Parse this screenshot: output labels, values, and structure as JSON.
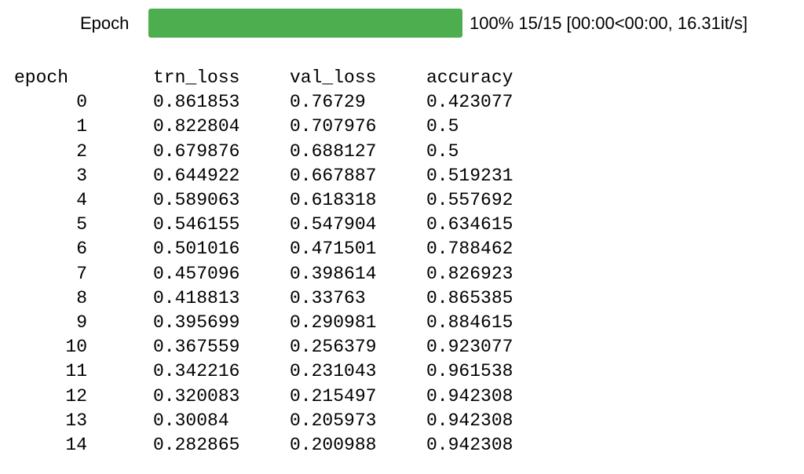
{
  "progress": {
    "label": "Epoch",
    "fraction": 1.0,
    "fill_color": "#4cae4f",
    "status": "100% 15/15 [00:00<00:00, 16.31it/s]"
  },
  "table": {
    "headers": [
      "epoch",
      "trn_loss",
      "val_loss",
      "accuracy"
    ],
    "rows": [
      [
        "0",
        "0.861853",
        "0.76729",
        "0.423077"
      ],
      [
        "1",
        "0.822804",
        "0.707976",
        "0.5"
      ],
      [
        "2",
        "0.679876",
        "0.688127",
        "0.5"
      ],
      [
        "3",
        "0.644922",
        "0.667887",
        "0.519231"
      ],
      [
        "4",
        "0.589063",
        "0.618318",
        "0.557692"
      ],
      [
        "5",
        "0.546155",
        "0.547904",
        "0.634615"
      ],
      [
        "6",
        "0.501016",
        "0.471501",
        "0.788462"
      ],
      [
        "7",
        "0.457096",
        "0.398614",
        "0.826923"
      ],
      [
        "8",
        "0.418813",
        "0.33763",
        "0.865385"
      ],
      [
        "9",
        "0.395699",
        "0.290981",
        "0.884615"
      ],
      [
        "10",
        "0.367559",
        "0.256379",
        "0.923077"
      ],
      [
        "11",
        "0.342216",
        "0.231043",
        "0.961538"
      ],
      [
        "12",
        "0.320083",
        "0.215497",
        "0.942308"
      ],
      [
        "13",
        "0.30084",
        "0.205973",
        "0.942308"
      ],
      [
        "14",
        "0.282865",
        "0.200988",
        "0.942308"
      ]
    ]
  }
}
